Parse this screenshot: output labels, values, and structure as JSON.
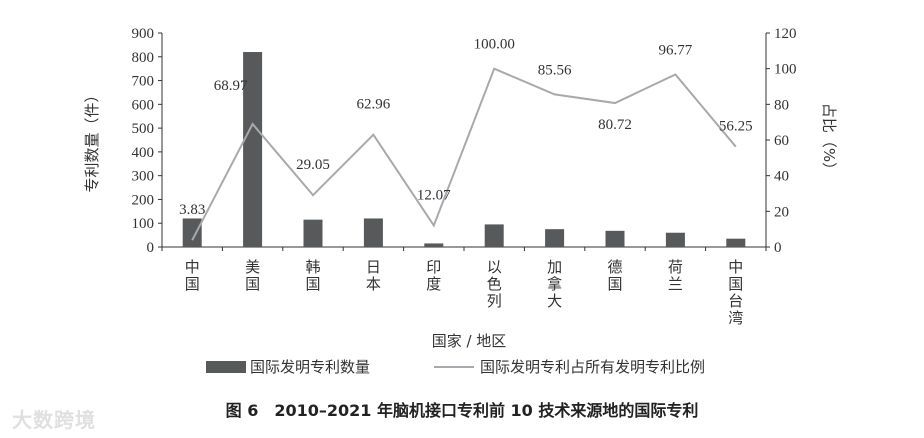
{
  "chart_data": {
    "type": "bar",
    "categories": [
      "中国",
      "美国",
      "韩国",
      "日本",
      "印度",
      "以色列",
      "加拿大",
      "德国",
      "荷兰",
      "中国台湾"
    ],
    "series": [
      {
        "name": "国际发明专利数量",
        "type": "bar",
        "axis": "left",
        "values": [
          120,
          820,
          115,
          120,
          15,
          95,
          75,
          68,
          60,
          35
        ]
      },
      {
        "name": "国际发明专利占所有发明专利比例",
        "type": "line",
        "axis": "right",
        "values": [
          3.83,
          68.97,
          29.05,
          62.96,
          12.07,
          100.0,
          85.56,
          80.72,
          96.77,
          56.25
        ],
        "labels": [
          "3.83",
          "68.97",
          "29.05",
          "62.96",
          "12.07",
          "100.00",
          "85.56",
          "80.72",
          "96.77",
          "56.25"
        ]
      }
    ],
    "xlabel": "国家 / 地区",
    "ylabel": "专利数量（件）",
    "y2label": "占比（%）",
    "ylim": [
      0,
      900
    ],
    "y2lim": [
      0,
      120
    ],
    "yticks": [
      "0",
      "100",
      "200",
      "300",
      "400",
      "500",
      "600",
      "700",
      "800",
      "900"
    ],
    "y2ticks": [
      "0",
      "20",
      "40",
      "60",
      "80",
      "100",
      "120"
    ],
    "grid": false,
    "legend": "bottom",
    "colors": {
      "bar": "#58595b",
      "line": "#a7a9ac",
      "axis": "#333333"
    }
  },
  "caption": "图 6　2010–2021 年脑机接口专利前 10 技术来源地的国际专利",
  "watermark": "大数跨境"
}
